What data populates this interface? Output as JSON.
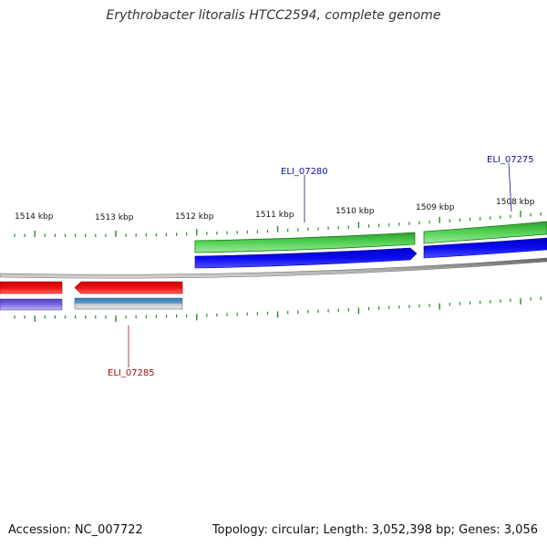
{
  "title": "Erythrobacter litoralis HTCC2594, complete genome",
  "footer": {
    "accession": "Accession: NC_007722",
    "summary": "Topology: circular; Length: 3,052,398 bp; Genes: 3,056"
  },
  "axis": {
    "tick_labels": [
      "1514 kbp",
      "1513 kbp",
      "1512 kbp",
      "1511 kbp",
      "1510 kbp",
      "1509 kbp",
      "1508 kbp"
    ]
  },
  "genes": [
    {
      "name": "ELI_07280",
      "strand": "forward",
      "color": "#1010a0"
    },
    {
      "name": "ELI_07275",
      "strand": "forward",
      "color": "#1010a0"
    },
    {
      "name": "ELI_07285",
      "strand": "reverse",
      "color": "#a01010"
    }
  ],
  "colors": {
    "forward_cds": "#0000e0",
    "reverse_cds": "#e00000",
    "rna_track": "#30b030",
    "backbone": "#808080",
    "tick": "#2a8a2a"
  }
}
